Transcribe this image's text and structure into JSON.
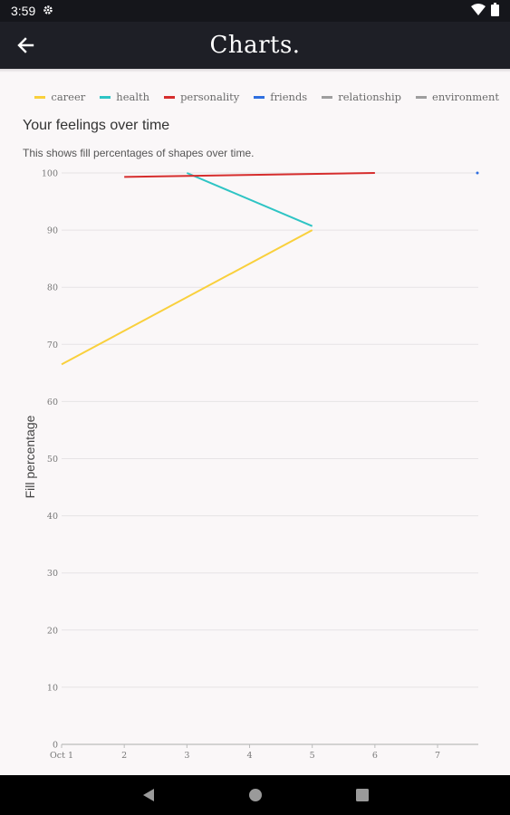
{
  "status_bar": {
    "time": "3:59",
    "icons": [
      "settings-gear-icon",
      "wifi-icon",
      "battery-icon"
    ]
  },
  "app_bar": {
    "title": "Charts.",
    "back_icon": "arrow-back-icon"
  },
  "colors": {
    "status_bar_bg": "#15161b",
    "app_bar_bg": "#1e1f26",
    "page_bg": "#faf7f8",
    "career": "#f9d03c",
    "health": "#2ec4c4",
    "personality": "#d62d2d",
    "friends": "#2f6fe0",
    "relationship": "#9e9e9e",
    "environment": "#9e9e9e"
  },
  "legend": [
    {
      "label": "career",
      "color": "#f9d03c"
    },
    {
      "label": "health",
      "color": "#2ec4c4"
    },
    {
      "label": "personality",
      "color": "#d62d2d"
    },
    {
      "label": "friends",
      "color": "#2f6fe0"
    },
    {
      "label": "relationship",
      "color": "#9e9e9e"
    },
    {
      "label": "environment",
      "color": "#9e9e9e"
    }
  ],
  "chart_data": {
    "type": "line",
    "title": "Your feelings over time",
    "subtitle": "This shows fill percentages of shapes over time.",
    "ylabel": "Fill percentage",
    "xlabel": "",
    "x_ticks": [
      "Oct 1",
      "2",
      "3",
      "4",
      "5",
      "6",
      "7"
    ],
    "x_range": [
      1,
      7.65
    ],
    "y_ticks": [
      0,
      10,
      20,
      30,
      40,
      50,
      60,
      70,
      80,
      90,
      100
    ],
    "ylim": [
      0,
      100
    ],
    "grid": true,
    "legend_position": "top-right",
    "series": [
      {
        "name": "career",
        "color": "#f9d03c",
        "points": [
          [
            1,
            66.5
          ],
          [
            5,
            90
          ]
        ]
      },
      {
        "name": "health",
        "color": "#2ec4c4",
        "points": [
          [
            3,
            100
          ],
          [
            5,
            90.7
          ]
        ]
      },
      {
        "name": "personality",
        "color": "#d62d2d",
        "points": [
          [
            2,
            99.3
          ],
          [
            6,
            100
          ]
        ]
      },
      {
        "name": "friends",
        "color": "#2f6fe0",
        "points": [
          [
            7.65,
            100
          ]
        ]
      }
    ]
  },
  "nav_bar": {
    "buttons": [
      "back-triangle-icon",
      "home-circle-icon",
      "recents-square-icon"
    ]
  }
}
